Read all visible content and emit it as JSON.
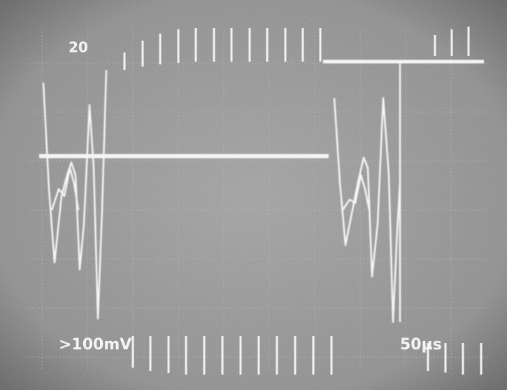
{
  "labels": {
    "channel_scale": "20",
    "trigger_level": ">100mV",
    "time_base": "50µs"
  }
}
